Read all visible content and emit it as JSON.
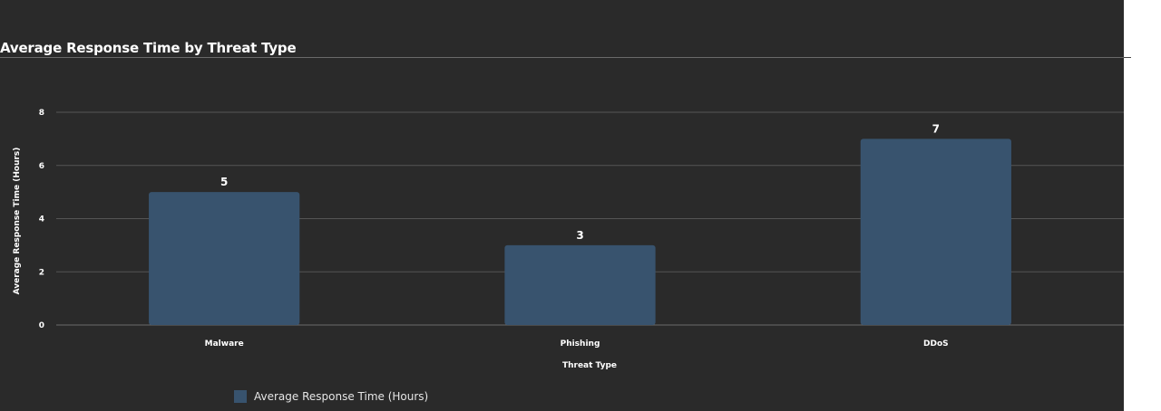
{
  "chart_data": {
    "type": "bar",
    "title": "Average Response Time by Threat Type",
    "xlabel": "Threat Type",
    "ylabel": "Average Response Time (Hours)",
    "categories": [
      "Malware",
      "Phishing",
      "DDoS"
    ],
    "series": [
      {
        "name": "Average Response Time (Hours)",
        "values": [
          5,
          3,
          7
        ],
        "color": "#38536e"
      }
    ],
    "ylim": [
      0,
      8
    ],
    "yticks": [
      0,
      2,
      4,
      6,
      8
    ],
    "grid": true,
    "legend_position": "bottom-left"
  }
}
